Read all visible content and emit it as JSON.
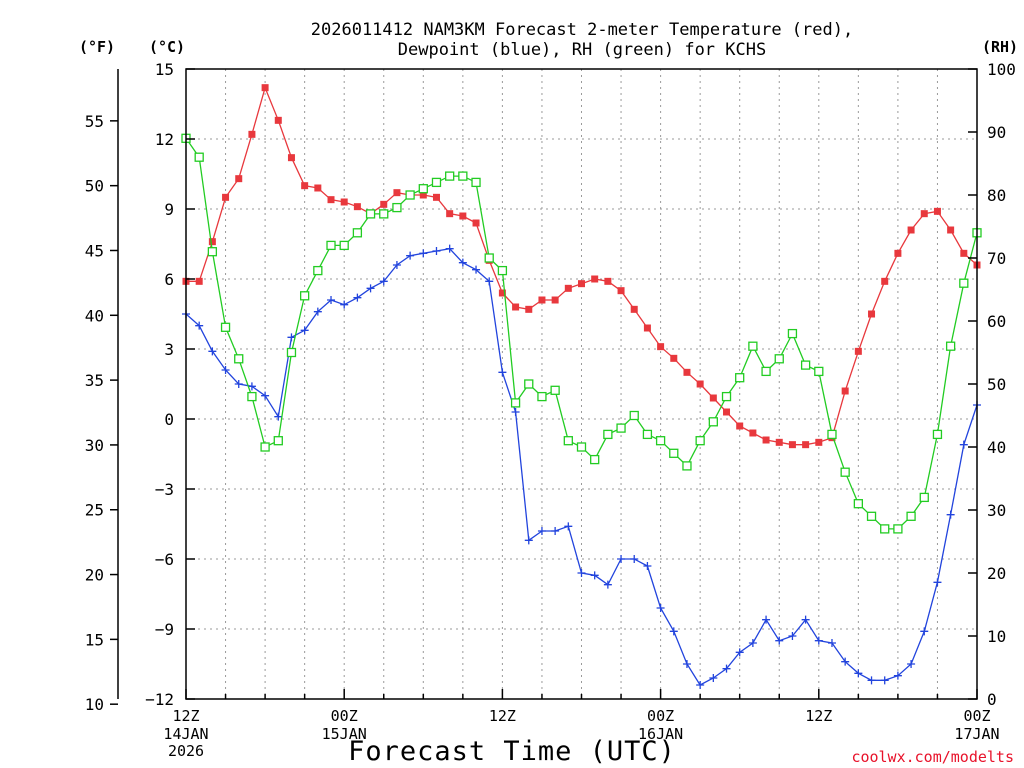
{
  "chart_data": {
    "type": "line",
    "title_line1": "2026011412 NAM3KM Forecast 2-meter Temperature (red),",
    "title_line2": "Dewpoint (blue), RH (green) for KCHS",
    "xlabel": "Forecast Time (UTC)",
    "credit": "coolwx.com/modelts",
    "units": {
      "left_f": "(°F)",
      "left_c": "(°C)",
      "right_rh": "(RH)"
    },
    "x_range_hours": [
      0,
      60
    ],
    "x_ticks": [
      {
        "h": 0,
        "label": "12Z",
        "date": "14JAN",
        "year": "2026"
      },
      {
        "h": 12,
        "label": "00Z",
        "date": "15JAN",
        "year": ""
      },
      {
        "h": 24,
        "label": "12Z",
        "date": "",
        "year": ""
      },
      {
        "h": 36,
        "label": "00Z",
        "date": "16JAN",
        "year": ""
      },
      {
        "h": 48,
        "label": "12Z",
        "date": "",
        "year": ""
      },
      {
        "h": 60,
        "label": "00Z",
        "date": "17JAN",
        "year": ""
      }
    ],
    "celsius_axis": {
      "range": [
        -12,
        15
      ],
      "ticks": [
        -12,
        -9,
        -6,
        -3,
        0,
        3,
        6,
        9,
        12,
        15
      ],
      "labels": [
        "−12",
        "−9",
        "−6",
        "−3",
        "0",
        "3",
        "6",
        "9",
        "12",
        "15"
      ]
    },
    "fahrenheit_axis": {
      "ticks": [
        10,
        15,
        20,
        25,
        30,
        35,
        40,
        45,
        50,
        55
      ],
      "labels": [
        "10",
        "15",
        "20",
        "25",
        "30",
        "35",
        "40",
        "45",
        "50",
        "55"
      ]
    },
    "rh_axis": {
      "range": [
        0,
        100
      ],
      "ticks": [
        0,
        10,
        20,
        30,
        40,
        50,
        60,
        70,
        80,
        90,
        100
      ],
      "labels": [
        "0",
        "10",
        "20",
        "30",
        "40",
        "50",
        "60",
        "70",
        "80",
        "90",
        "100"
      ]
    },
    "x_hours": [
      0,
      1,
      2,
      3,
      4,
      5,
      6,
      7,
      8,
      9,
      10,
      11,
      12,
      13,
      14,
      15,
      16,
      17,
      18,
      19,
      20,
      21,
      22,
      23,
      24,
      25,
      26,
      27,
      28,
      29,
      30,
      31,
      32,
      33,
      34,
      35,
      36,
      37,
      38,
      39,
      40,
      41,
      42,
      43,
      44,
      45,
      46,
      47,
      48,
      49,
      50,
      51,
      52,
      53,
      54,
      55,
      56,
      57,
      58,
      59,
      60
    ],
    "series": [
      {
        "name": "2-meter Temperature",
        "axis": "celsius",
        "color": "#e8383d",
        "marker": "filled-square",
        "values": [
          5.9,
          5.9,
          7.6,
          9.5,
          10.3,
          12.2,
          14.2,
          12.8,
          11.2,
          10.0,
          9.9,
          9.4,
          9.3,
          9.1,
          8.8,
          9.2,
          9.7,
          9.6,
          9.6,
          9.5,
          8.8,
          8.7,
          8.4,
          6.8,
          5.4,
          4.8,
          4.7,
          5.1,
          5.1,
          5.6,
          5.8,
          6.0,
          5.9,
          5.5,
          4.7,
          3.9,
          3.1,
          2.6,
          2.0,
          1.5,
          0.9,
          0.3,
          -0.3,
          -0.6,
          -0.9,
          -1.0,
          -1.1,
          -1.1,
          -1.0,
          -0.8,
          1.2,
          2.9,
          4.5,
          5.9,
          7.1,
          8.1,
          8.8,
          8.9,
          8.1,
          7.1,
          6.6
        ]
      },
      {
        "name": "Dewpoint",
        "axis": "celsius",
        "color": "#2244dd",
        "marker": "plus",
        "values": [
          4.5,
          4.0,
          2.9,
          2.1,
          1.5,
          1.4,
          1.0,
          0.1,
          3.5,
          3.8,
          4.6,
          5.1,
          4.9,
          5.2,
          5.6,
          5.9,
          6.6,
          7.0,
          7.1,
          7.2,
          7.3,
          6.7,
          6.4,
          5.9,
          2.0,
          0.3,
          -5.2,
          -4.8,
          -4.8,
          -4.6,
          -6.6,
          -6.7,
          -7.1,
          -6.0,
          -6.0,
          -6.3,
          -8.1,
          -9.1,
          -10.5,
          -11.4,
          -11.1,
          -10.7,
          -10.0,
          -9.6,
          -8.6,
          -9.5,
          -9.3,
          -8.6,
          -9.5,
          -9.6,
          -10.4,
          -10.9,
          -11.2,
          -11.2,
          -11.0,
          -10.5,
          -9.1,
          -7.0,
          -4.1,
          -1.1,
          0.6
        ]
      },
      {
        "name": "RH",
        "axis": "rh",
        "color": "#22cc22",
        "marker": "open-square",
        "values": [
          89,
          86,
          71,
          59,
          54,
          48,
          40,
          41,
          55,
          64,
          68,
          72,
          72,
          74,
          77,
          77,
          78,
          80,
          81,
          82,
          83,
          83,
          82,
          70,
          68,
          47,
          50,
          48,
          49,
          41,
          40,
          38,
          42,
          43,
          45,
          42,
          41,
          39,
          37,
          41,
          44,
          48,
          51,
          56,
          52,
          54,
          58,
          53,
          52,
          42,
          36,
          31,
          29,
          27,
          27,
          29,
          32,
          42,
          56,
          66,
          74
        ]
      }
    ]
  }
}
